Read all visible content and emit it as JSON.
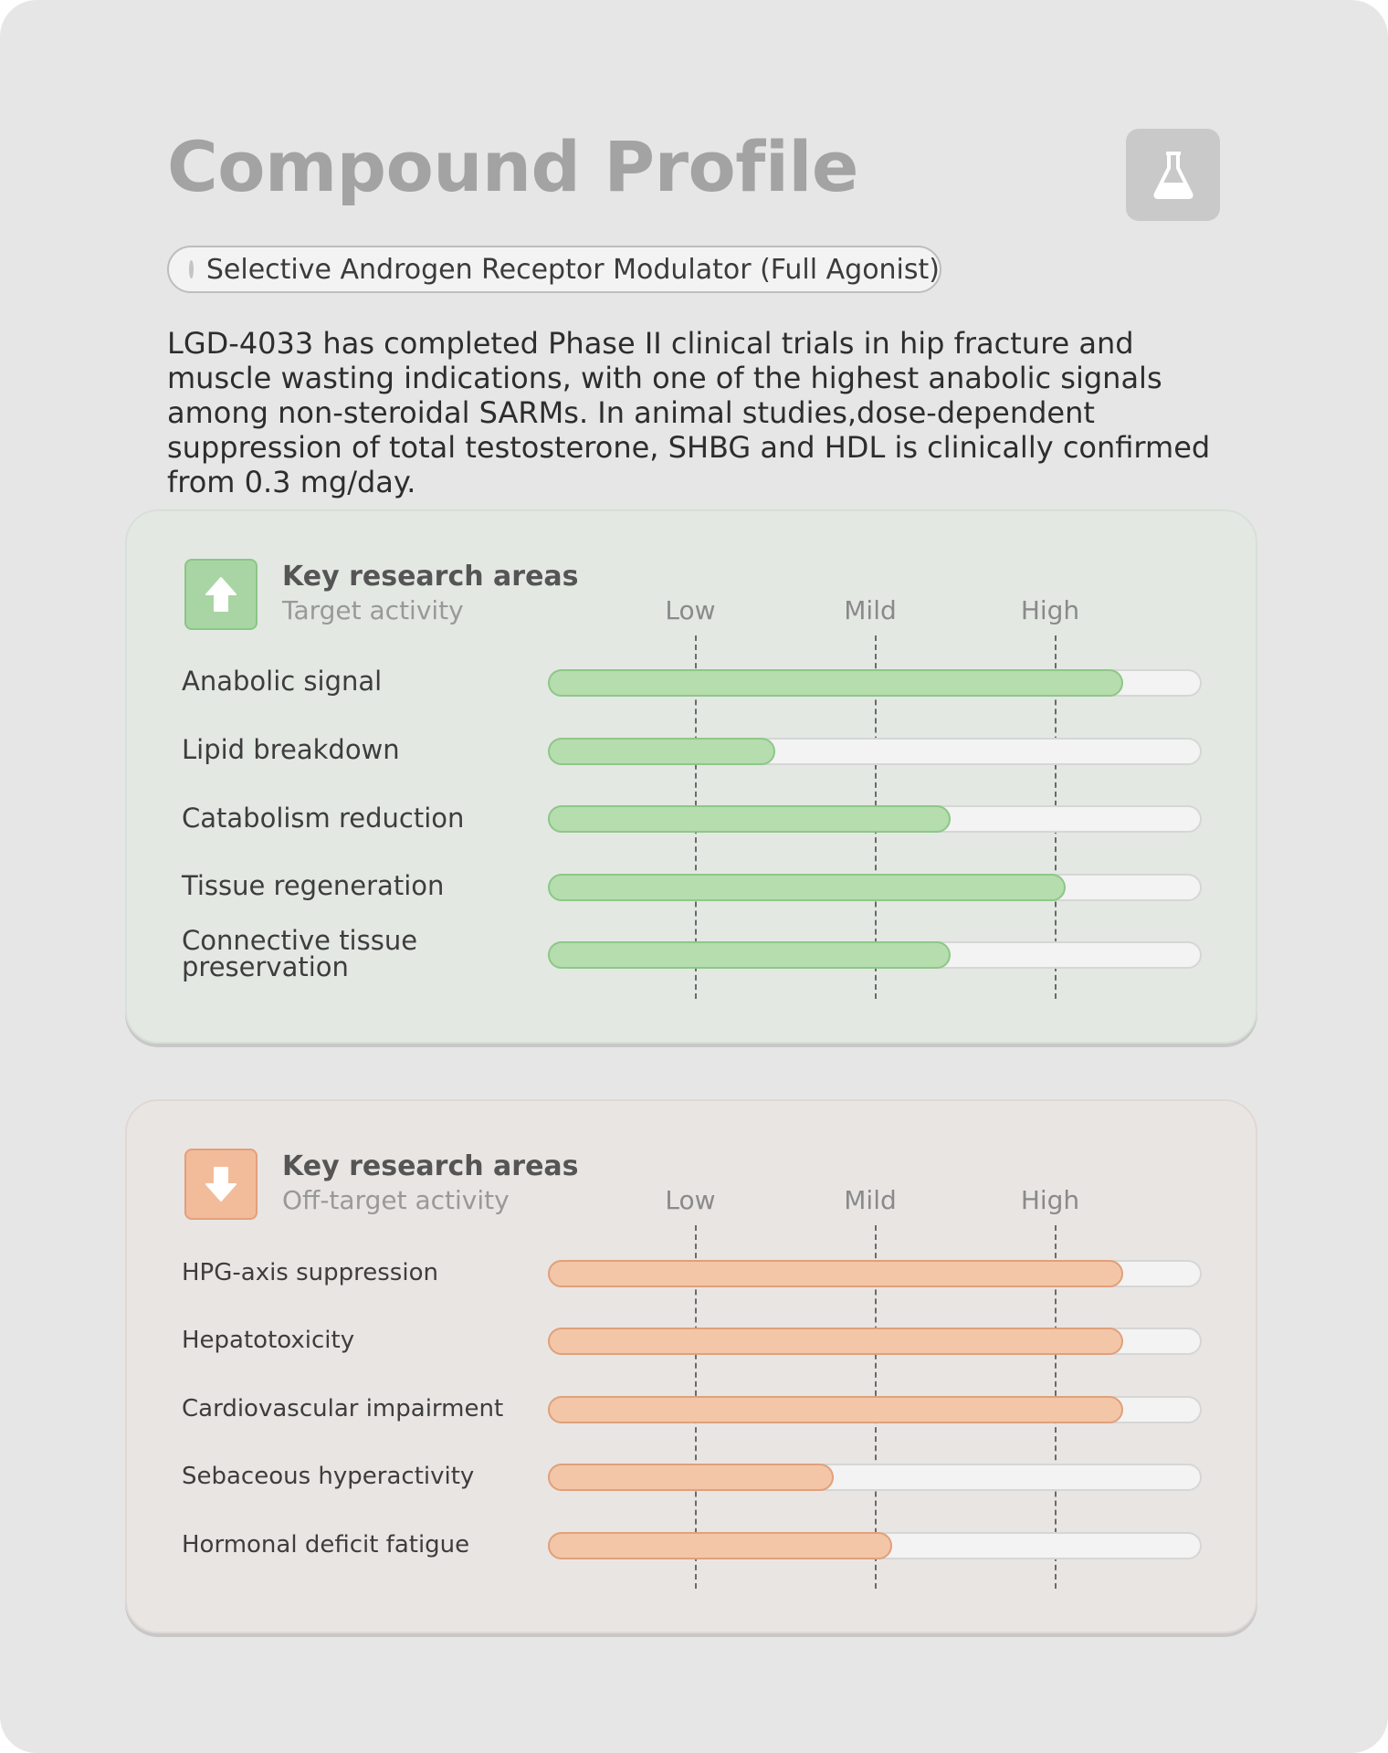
{
  "header": {
    "title": "Compound Profile",
    "icon": "flask-icon"
  },
  "classification": {
    "label": "Selective Androgen Receptor Modulator (Full Agonist)"
  },
  "description": "LGD-4033 has completed Phase II clinical trials in hip fracture and muscle wasting indications, with one of the highest anabolic signals among non-steroidal SARMs. In animal studies,dose-dependent suppression of total testosterone, SHBG and HDL is clinically confirmed from 0.3 mg/day.",
  "colors": {
    "target_fill": "#b5ddae",
    "off_target_fill": "#f3c6a8"
  },
  "target_panel": {
    "icon": "arrow-up-icon",
    "heading": "Key research areas",
    "subheading": "Target activity",
    "scale": [
      "Low",
      "Mild",
      "High"
    ],
    "rows": [
      {
        "label": "Anabolic signal",
        "level": 0.885
      },
      {
        "label": "Lipid breakdown",
        "level": 0.35
      },
      {
        "label": "Catabolism reduction",
        "level": 0.62
      },
      {
        "label": "Tissue regeneration",
        "level": 0.797
      },
      {
        "label": "Connective tissue preservation",
        "level": 0.62
      }
    ]
  },
  "off_target_panel": {
    "icon": "arrow-down-icon",
    "heading": "Key research areas",
    "subheading": "Off-target activity",
    "scale": [
      "Low",
      "Mild",
      "High"
    ],
    "rows": [
      {
        "label": "HPG-axis suppression",
        "level": 0.885
      },
      {
        "label": "Hepatotoxicity",
        "level": 0.885
      },
      {
        "label": "Cardiovascular impairment",
        "level": 0.885
      },
      {
        "label": "Sebaceous hyperactivity",
        "level": 0.44
      },
      {
        "label": "Hormonal deficit fatigue",
        "level": 0.53
      }
    ]
  }
}
